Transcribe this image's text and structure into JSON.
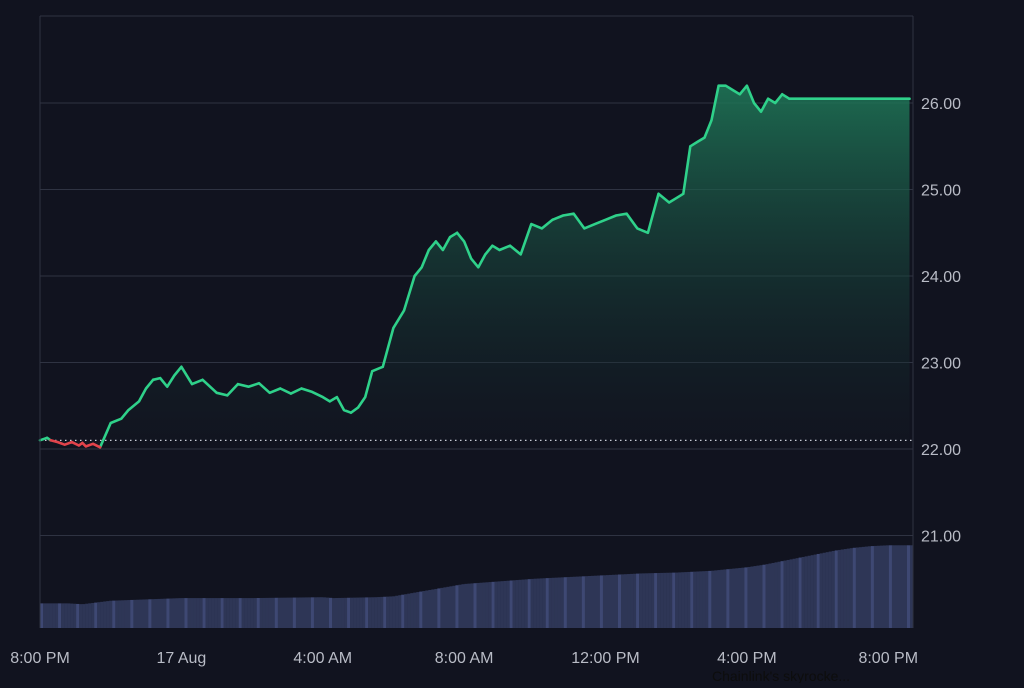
{
  "colors": {
    "background": "#11131f",
    "grid": "#2f3342",
    "up_line": "#2fd18a",
    "down_line": "#e2434b",
    "area_top": "#1f7a59",
    "area_bottom": "#121a24",
    "volume": "#2e3656",
    "volume_edge": "#3e4873",
    "axis_text": "#b9bcc6",
    "baseline": "#c9ccd6",
    "caption_text": "#0d0d0d"
  },
  "caption": "Chainlink's skyrocke...",
  "chart_data": {
    "type": "line",
    "title": "",
    "xlabel": "",
    "ylabel": "",
    "ylim": [
      20.0,
      27.0
    ],
    "baseline_value": 22.1,
    "grid": true,
    "y_ticks": [
      "21.00",
      "22.00",
      "23.00",
      "24.00",
      "25.00",
      "26.00"
    ],
    "y_tick_values": [
      21,
      22,
      23,
      24,
      25,
      26
    ],
    "x_ticks": [
      "8:00 PM",
      "17 Aug",
      "4:00 AM",
      "8:00 AM",
      "12:00 PM",
      "4:00 PM",
      "8:00 PM"
    ],
    "x_tick_hours": [
      0,
      4,
      8,
      12,
      16,
      20,
      24
    ],
    "x_range_hours": [
      0,
      24.7
    ],
    "series": [
      {
        "kind": "price",
        "x_hours": [
          0,
          0.2,
          0.3,
          0.5,
          0.7,
          0.9,
          1.1,
          1.2,
          1.3,
          1.5,
          1.7,
          2.0,
          2.3,
          2.5,
          2.8,
          3.0,
          3.2,
          3.4,
          3.6,
          3.8,
          4.0,
          4.3,
          4.6,
          5.0,
          5.3,
          5.6,
          5.9,
          6.2,
          6.5,
          6.8,
          7.1,
          7.4,
          7.7,
          8.0,
          8.2,
          8.4,
          8.6,
          8.8,
          9.0,
          9.2,
          9.4,
          9.7,
          10.0,
          10.3,
          10.6,
          10.8,
          11.0,
          11.2,
          11.4,
          11.6,
          11.8,
          12.0,
          12.2,
          12.4,
          12.6,
          12.8,
          13.0,
          13.3,
          13.6,
          13.9,
          14.2,
          14.5,
          14.8,
          15.1,
          15.4,
          15.7,
          16.0,
          16.3,
          16.6,
          16.9,
          17.2,
          17.5,
          17.8,
          18.0,
          18.2,
          18.4,
          18.6,
          18.8,
          19.0,
          19.2,
          19.4,
          19.6,
          19.8,
          20.0,
          20.2,
          20.4,
          20.6,
          20.8,
          21.0,
          21.2,
          21.4,
          21.6,
          21.8,
          22.0,
          22.2,
          22.4,
          22.6,
          22.8,
          23.0,
          23.2,
          23.4,
          23.6,
          23.8,
          24.0,
          24.2,
          24.4,
          24.6
        ],
        "y": [
          22.1,
          22.13,
          22.1,
          22.08,
          22.05,
          22.08,
          22.04,
          22.07,
          22.03,
          22.06,
          22.02,
          22.3,
          22.35,
          22.45,
          22.55,
          22.7,
          22.8,
          22.82,
          22.72,
          22.85,
          22.95,
          22.75,
          22.8,
          22.65,
          22.62,
          22.75,
          22.72,
          22.76,
          22.65,
          22.7,
          22.64,
          22.7,
          22.66,
          22.6,
          22.55,
          22.6,
          22.45,
          22.42,
          22.48,
          22.6,
          22.9,
          22.95,
          23.4,
          23.6,
          24.0,
          24.1,
          24.3,
          24.4,
          24.3,
          24.45,
          24.5,
          24.4,
          24.2,
          24.1,
          24.25,
          24.35,
          24.3,
          24.35,
          24.25,
          24.6,
          24.55,
          24.65,
          24.7,
          24.72,
          24.55,
          24.6,
          24.65,
          24.7,
          24.72,
          24.55,
          24.5,
          24.95,
          24.85,
          24.9,
          24.95,
          25.5,
          25.55,
          25.6,
          25.8,
          26.2,
          26.2,
          26.15,
          26.1,
          26.2,
          26.0,
          25.9,
          26.05,
          26.0,
          26.1,
          26.05,
          26.05,
          26.05,
          26.05,
          26.05,
          26.05,
          26.05,
          26.05,
          26.05,
          26.05,
          26.05,
          26.05,
          26.05,
          26.05,
          26.05,
          26.05,
          26.05,
          26.05
        ]
      },
      {
        "kind": "volume",
        "x_hours": [
          0,
          0.8,
          1.2,
          2.0,
          4.0,
          6.0,
          8.0,
          8.3,
          9.5,
          10.0,
          11.0,
          12.0,
          13.0,
          14.0,
          15.0,
          16.0,
          17.0,
          18.0,
          19.0,
          19.5,
          20.0,
          20.5,
          21.0,
          21.5,
          22.0,
          22.5,
          23.0,
          23.5,
          24.0,
          24.7
        ],
        "y": [
          0.28,
          0.28,
          0.27,
          0.31,
          0.34,
          0.34,
          0.35,
          0.34,
          0.35,
          0.36,
          0.43,
          0.5,
          0.53,
          0.56,
          0.58,
          0.6,
          0.62,
          0.63,
          0.65,
          0.67,
          0.69,
          0.72,
          0.76,
          0.8,
          0.84,
          0.88,
          0.91,
          0.93,
          0.94,
          0.94
        ]
      }
    ]
  }
}
